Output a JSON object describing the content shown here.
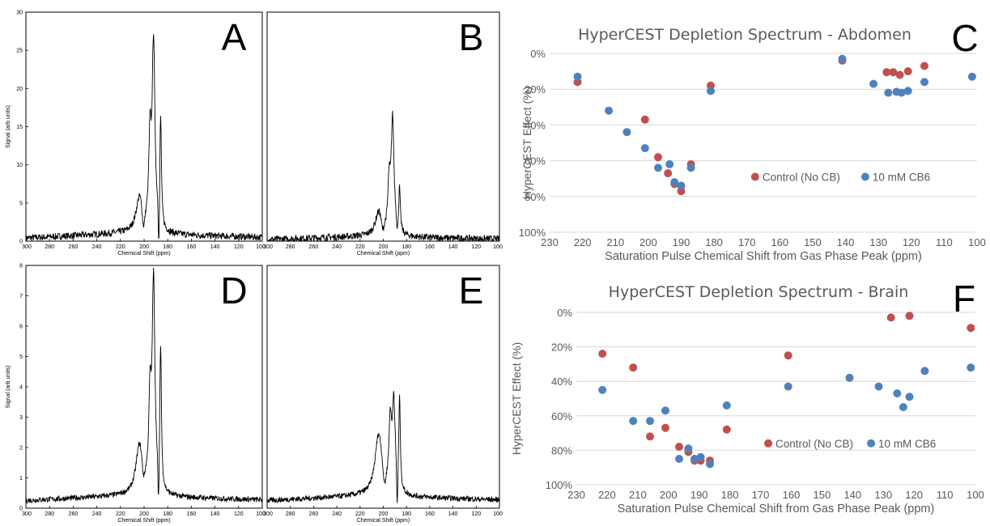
{
  "figure": {
    "panels": [
      {
        "letter": "A",
        "ylabel": "Signal (arb units)",
        "xlabel": "Chemical Shift (ppm)",
        "show_y_ticks": true
      },
      {
        "letter": "B",
        "ylabel": "",
        "xlabel": "Chemical Shift (ppm)",
        "show_y_ticks": false
      },
      {
        "letter": "D",
        "ylabel": "Signal (arb units)",
        "xlabel": "Chemical Shift (ppm)",
        "show_y_ticks": true
      },
      {
        "letter": "E",
        "ylabel": "",
        "xlabel": "Chemical Shift (ppm)",
        "show_y_ticks": false
      },
      {
        "letter": "C"
      },
      {
        "letter": "F"
      }
    ]
  },
  "chart_data": [
    {
      "type": "line",
      "panel": "A",
      "xlabel": "Chemical Shift (ppm)",
      "ylabel": "Signal (arb units)",
      "xlim": [
        300,
        100
      ],
      "ylim": [
        0,
        30
      ],
      "x_ticks": [
        300,
        280,
        260,
        240,
        220,
        200,
        180,
        160,
        140,
        120,
        100
      ],
      "y_ticks": [
        0,
        5,
        10,
        15,
        20,
        25,
        30
      ],
      "noise": 0.12,
      "baseline": [
        0.4,
        1.0
      ],
      "peaks": [
        {
          "center": 204,
          "height": 4.4,
          "width": 3.5
        },
        {
          "center": 195,
          "height": 11,
          "width": 1.2
        },
        {
          "center": 192,
          "height": 24.5,
          "width": 1.4
        },
        {
          "center": 186,
          "height": 14,
          "width": 0.8
        }
      ],
      "dips": [
        {
          "center": 200.5,
          "depth": 2.2,
          "width": 1.4
        },
        {
          "center": 187.5,
          "depth": 6,
          "width": 0.7
        }
      ],
      "grid": false
    },
    {
      "type": "line",
      "panel": "B",
      "xlabel": "Chemical Shift (ppm)",
      "xlim": [
        300,
        100
      ],
      "ylim": [
        0,
        30
      ],
      "x_ticks": [
        300,
        280,
        260,
        240,
        220,
        200,
        180,
        160,
        140,
        120,
        100
      ],
      "noise": 0.12,
      "baseline": [
        0.2,
        0.6
      ],
      "peaks": [
        {
          "center": 204,
          "height": 3,
          "width": 3.5
        },
        {
          "center": 195,
          "height": 6,
          "width": 1.2
        },
        {
          "center": 192,
          "height": 15,
          "width": 1.5
        },
        {
          "center": 186,
          "height": 5.5,
          "width": 0.8
        }
      ],
      "dips": [
        {
          "center": 200.5,
          "depth": 1.2,
          "width": 1.4
        },
        {
          "center": 188,
          "depth": 2,
          "width": 0.7
        }
      ],
      "grid": false
    },
    {
      "type": "line",
      "panel": "D",
      "xlabel": "Chemical Shift (ppm)",
      "ylabel": "Signal (arb units)",
      "xlim": [
        300,
        100
      ],
      "ylim": [
        0,
        8
      ],
      "x_ticks": [
        300,
        280,
        260,
        240,
        220,
        200,
        180,
        160,
        140,
        120,
        100
      ],
      "y_ticks": [
        0,
        1,
        2,
        3,
        4,
        5,
        6,
        7,
        8
      ],
      "noise": 0.09,
      "baseline": [
        0.25,
        0.4
      ],
      "peaks": [
        {
          "center": 204,
          "height": 1.6,
          "width": 3.5
        },
        {
          "center": 195,
          "height": 2.8,
          "width": 1.2
        },
        {
          "center": 192,
          "height": 6.9,
          "width": 1.4
        },
        {
          "center": 186,
          "height": 4.6,
          "width": 0.8
        }
      ],
      "dips": [
        {
          "center": 200.5,
          "depth": 0.4,
          "width": 1.4
        },
        {
          "center": 187.8,
          "depth": 1.6,
          "width": 0.7
        }
      ],
      "grid": false
    },
    {
      "type": "line",
      "panel": "E",
      "xlabel": "Chemical Shift (ppm)",
      "xlim": [
        300,
        100
      ],
      "ylim": [
        0,
        8
      ],
      "x_ticks": [
        300,
        280,
        260,
        240,
        220,
        200,
        180,
        160,
        140,
        120,
        100
      ],
      "noise": 0.09,
      "baseline": [
        0.25,
        0.4
      ],
      "peaks": [
        {
          "center": 204,
          "height": 2.0,
          "width": 3.8
        },
        {
          "center": 194,
          "height": 2.2,
          "width": 1.3
        },
        {
          "center": 191,
          "height": 2.9,
          "width": 1.4
        },
        {
          "center": 186,
          "height": 3.0,
          "width": 0.8
        }
      ],
      "dips": [
        {
          "center": 199,
          "depth": 0.5,
          "width": 1.6
        },
        {
          "center": 188,
          "depth": 1.3,
          "width": 0.7
        }
      ],
      "grid": false
    },
    {
      "type": "scatter",
      "panel": "C",
      "title": "HyperCEST Depletion Spectrum - Abdomen",
      "xlabel": "Saturation Pulse Chemical Shift from Gas Phase Peak (ppm)",
      "ylabel": "HyperCEST Effect (%)",
      "xlim": [
        230,
        100
      ],
      "ylim": [
        0,
        100
      ],
      "y_inverted": true,
      "x_ticks": [
        230,
        220,
        210,
        200,
        190,
        180,
        170,
        160,
        150,
        140,
        130,
        120,
        110,
        100
      ],
      "y_ticks": [
        0,
        20,
        40,
        60,
        80,
        100
      ],
      "y_tick_labels": [
        "0%",
        "20%",
        "40%",
        "60%",
        "80%",
        "100%"
      ],
      "grid": "horizontal",
      "legend_position": "inside-right",
      "series": [
        {
          "name": "Control (No CB)",
          "color": "#c0504d",
          "x": [
            221.5,
            201,
            197,
            194,
            192,
            190,
            187,
            181,
            141,
            127.5,
            125.5,
            123.5,
            121,
            116
          ],
          "y": [
            16,
            37,
            58,
            67,
            73,
            77,
            62,
            18,
            4,
            10.5,
            10.5,
            12,
            10,
            7
          ]
        },
        {
          "name": "10 mM CB6",
          "color": "#4f81bd",
          "x": [
            221.5,
            212,
            206.5,
            201,
            197,
            193.5,
            192,
            190,
            187,
            181,
            141,
            131.5,
            127,
            124.5,
            123,
            121,
            116,
            101.5
          ],
          "y": [
            13,
            32,
            44,
            53,
            64,
            62,
            72,
            74,
            64,
            21,
            3,
            17,
            22,
            21.5,
            22,
            21,
            16,
            13
          ]
        }
      ]
    },
    {
      "type": "scatter",
      "panel": "F",
      "title": "HyperCEST Depletion Spectrum - Brain",
      "xlabel": "Saturation Pulse Chemical Shift from Gas Phase Peak (ppm)",
      "ylabel": "HyperCEST Effect (%)",
      "xlim": [
        230,
        100
      ],
      "ylim": [
        0,
        100
      ],
      "y_inverted": true,
      "x_ticks": [
        230,
        220,
        210,
        200,
        190,
        180,
        170,
        160,
        150,
        140,
        130,
        120,
        110,
        100
      ],
      "y_ticks": [
        0,
        20,
        40,
        60,
        80,
        100
      ],
      "y_tick_labels": [
        "0%",
        "20%",
        "40%",
        "60%",
        "80%",
        "100%"
      ],
      "grid": "horizontal",
      "legend_position": "inside-right",
      "series": [
        {
          "name": "Control (No CB)",
          "color": "#c0504d",
          "x": [
            221.5,
            211.5,
            206,
            201,
            196.5,
            193.5,
            191.5,
            189.5,
            186.5,
            181,
            161,
            127.5,
            121.5,
            101.5
          ],
          "y": [
            24,
            32,
            72,
            67,
            78,
            81,
            86,
            86,
            86,
            68,
            25,
            3,
            2,
            9
          ]
        },
        {
          "name": "10 mM CB6",
          "color": "#4f81bd",
          "x": [
            221.5,
            211.5,
            206,
            201,
            196.5,
            193.5,
            191.5,
            189.5,
            186.5,
            181,
            161,
            141,
            131.5,
            125.5,
            123.5,
            121.5,
            116.5,
            101.5
          ],
          "y": [
            45,
            63,
            63,
            57,
            85,
            79,
            85,
            84,
            88,
            54,
            43,
            38,
            43,
            47,
            55,
            49,
            34,
            32
          ]
        }
      ]
    }
  ]
}
